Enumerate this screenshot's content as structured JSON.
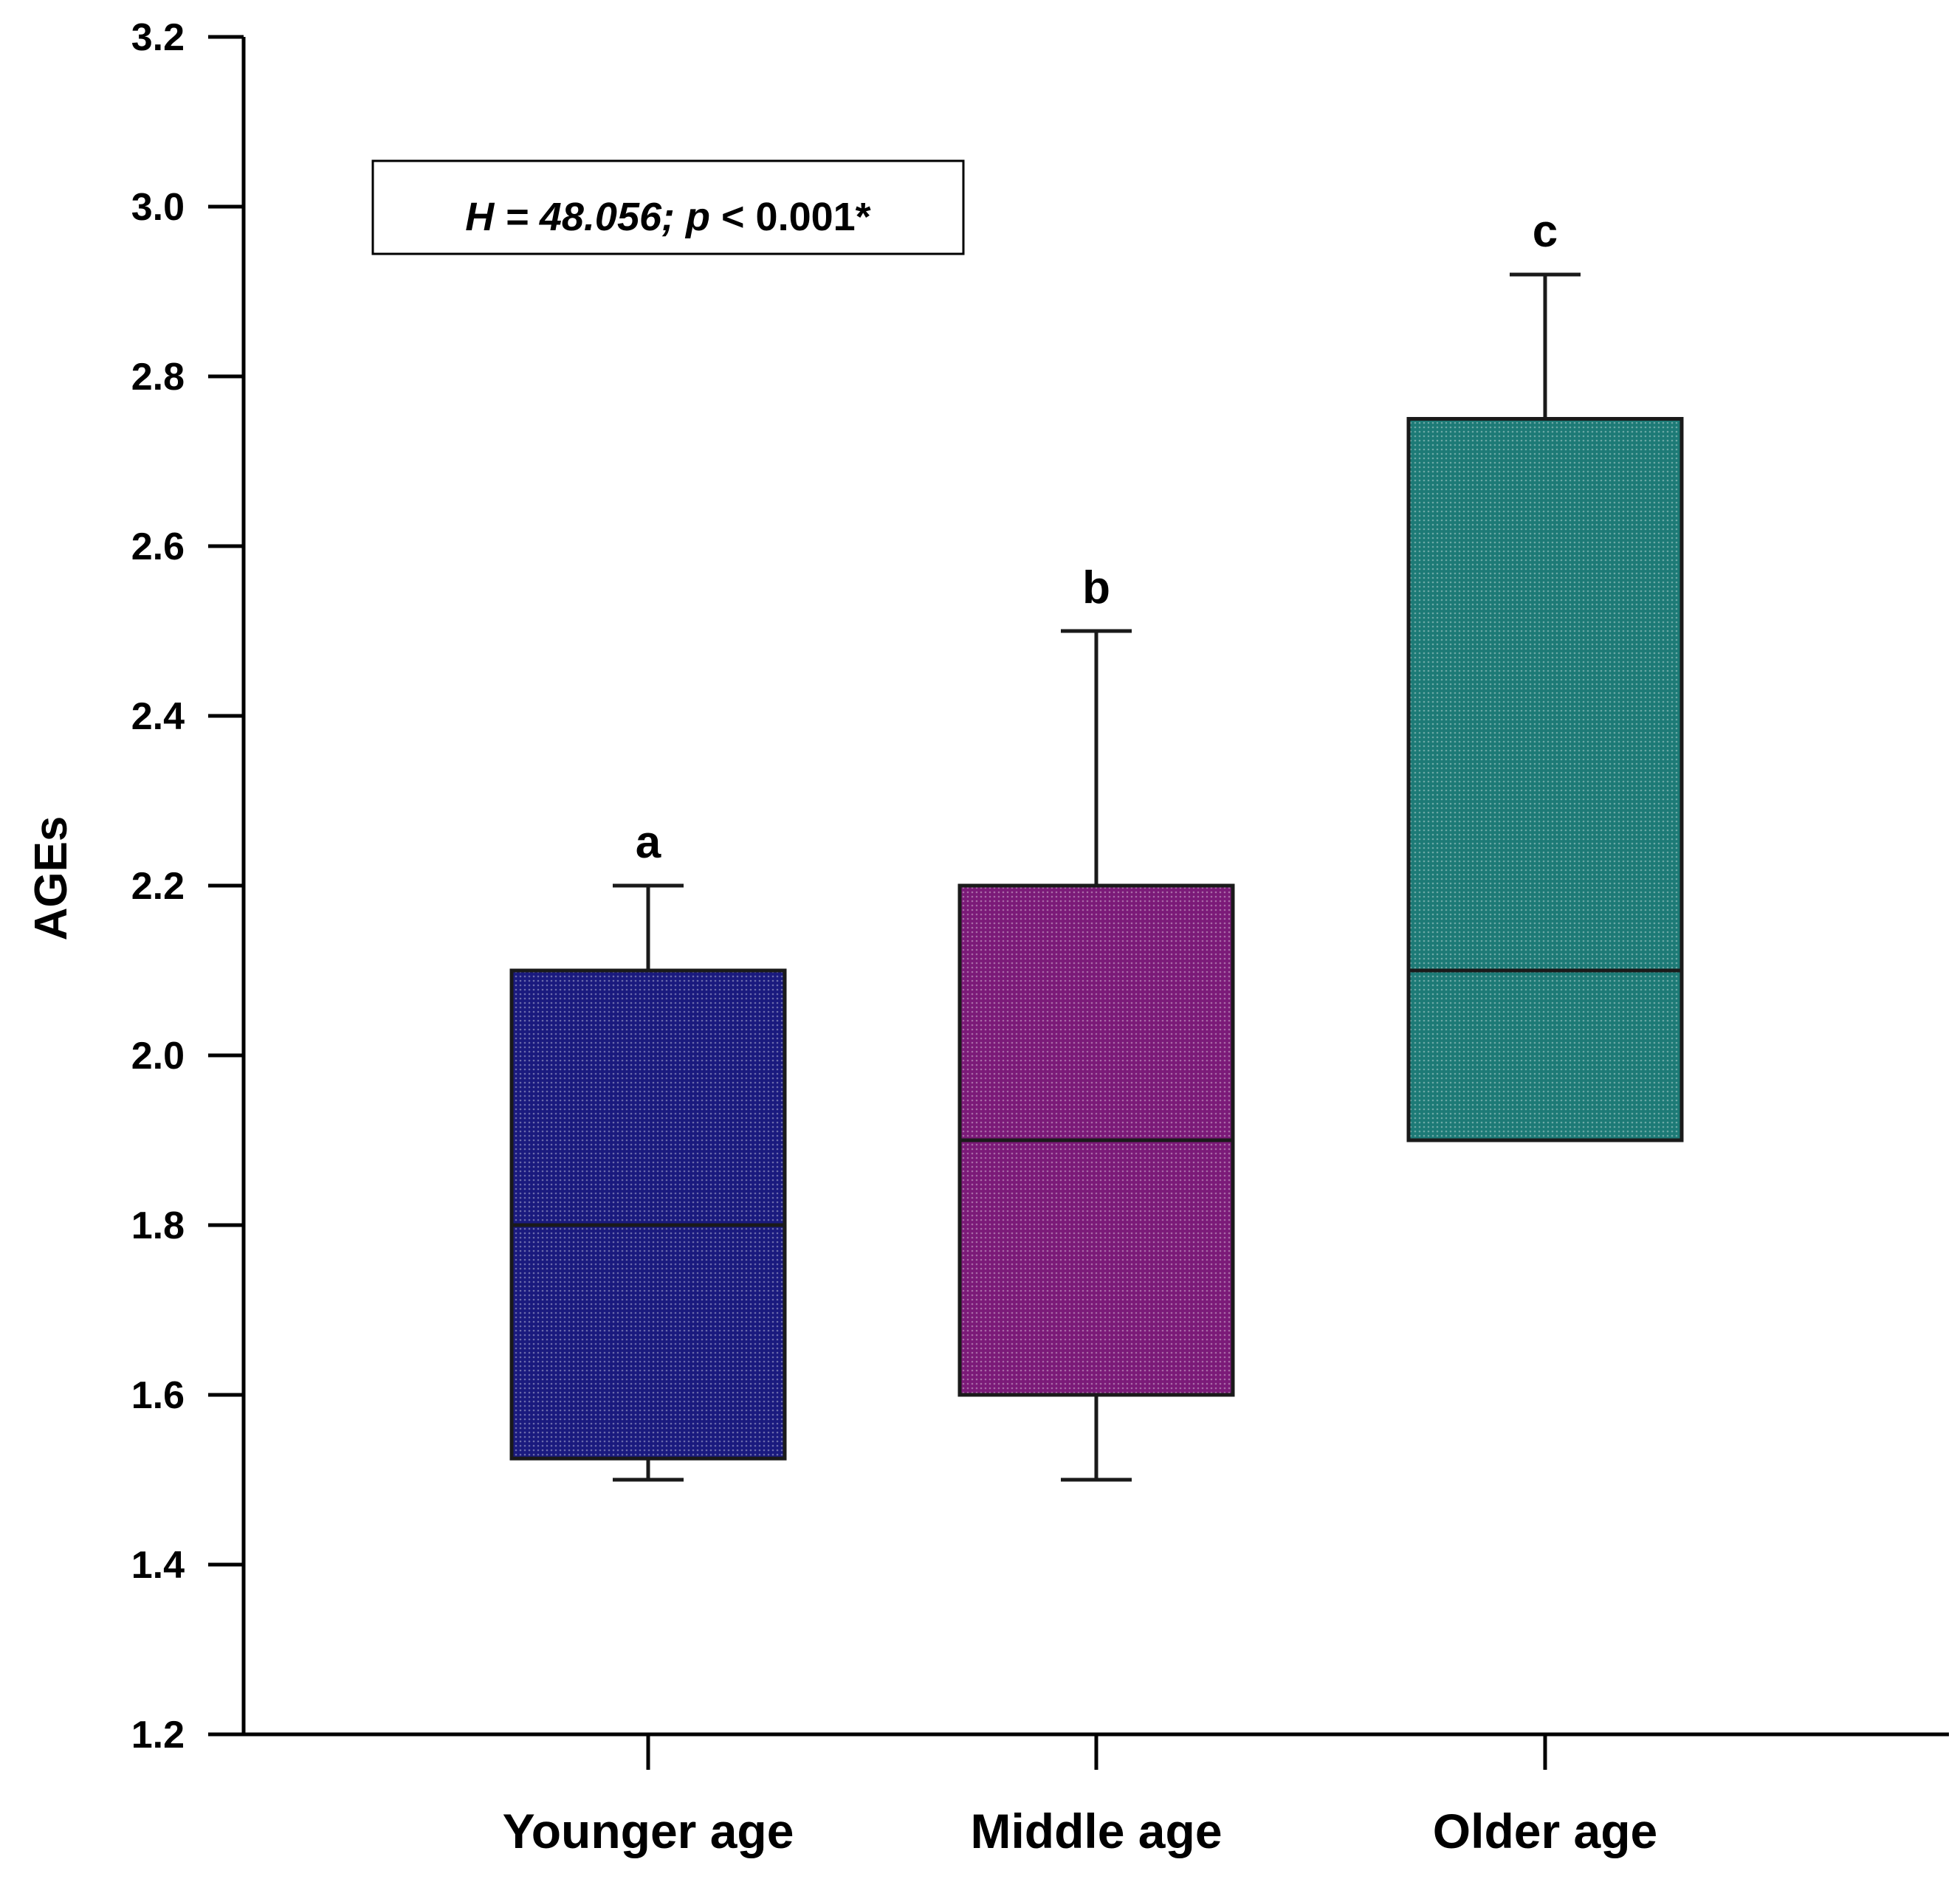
{
  "chart_data": {
    "type": "box",
    "title": "",
    "xlabel": "",
    "ylabel": "AGEs",
    "ylim": [
      1.2,
      3.2
    ],
    "yticks": [
      "1.2",
      "1.4",
      "1.6",
      "1.8",
      "2.0",
      "2.2",
      "2.4",
      "2.6",
      "2.8",
      "3.0",
      "3.2"
    ],
    "grid": false,
    "annotation": {
      "stat_label": "H",
      "stat_value": " = 48.056; ",
      "p_label": "p",
      "p_value": " < 0.001*"
    },
    "categories": [
      "Younger age",
      "Middle age",
      "Older age"
    ],
    "groups": [
      {
        "name": "Younger age",
        "letter": "a",
        "color": "#1a1a7e",
        "whisker_low": 1.5,
        "q1": 1.525,
        "median": 1.8,
        "q3": 2.1,
        "whisker_high": 2.2
      },
      {
        "name": "Middle age",
        "letter": "b",
        "color": "#7b1a78",
        "whisker_low": 1.5,
        "q1": 1.6,
        "median": 1.9,
        "q3": 2.2,
        "whisker_high": 2.5
      },
      {
        "name": "Older age",
        "letter": "c",
        "color": "#1d7a76",
        "whisker_low": 1.9,
        "q1": 1.9,
        "median": 2.1,
        "q3": 2.75,
        "whisker_high": 2.92
      }
    ]
  }
}
